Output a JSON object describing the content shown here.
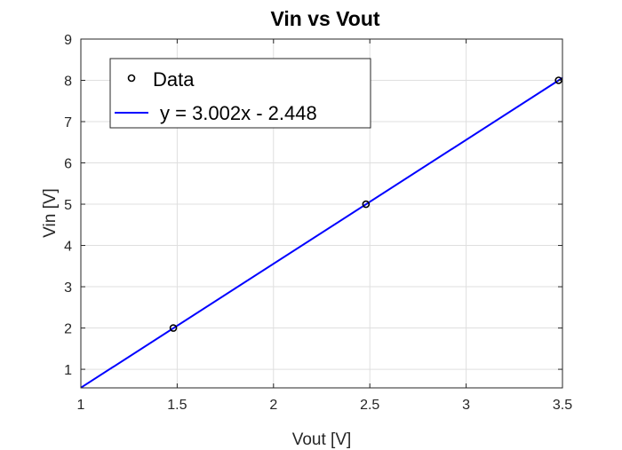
{
  "chart_data": {
    "type": "scatter",
    "title": "Vin vs Vout",
    "xlabel": "Vout [V]",
    "ylabel": "Vin [V]",
    "xlim": [
      1,
      3.5
    ],
    "ylim": [
      0.55,
      9
    ],
    "xticks": [
      "1",
      "1.5",
      "2",
      "2.5",
      "3",
      "3.5"
    ],
    "yticks": [
      "1",
      "2",
      "3",
      "4",
      "5",
      "6",
      "7",
      "8",
      "9"
    ],
    "grid": true,
    "legend_position": "top-left",
    "series": [
      {
        "name": "Data",
        "kind": "markers",
        "marker": "circle",
        "color": "#000000",
        "x": [
          1.48,
          2.48,
          3.48
        ],
        "y": [
          2,
          5,
          8
        ]
      },
      {
        "name": "y = 3.002x - 2.448",
        "kind": "line",
        "color": "#0000ff",
        "slope": 3.002,
        "intercept": -2.448,
        "x": [
          1,
          3.5
        ]
      }
    ]
  }
}
